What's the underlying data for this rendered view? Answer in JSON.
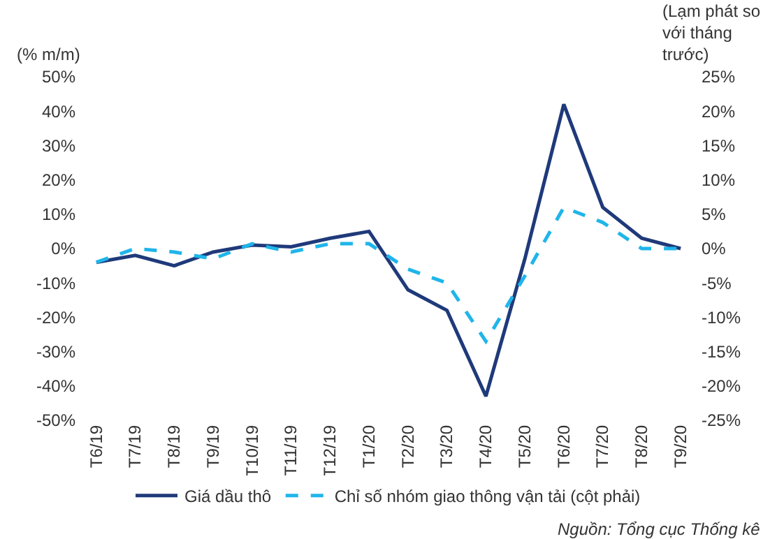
{
  "chart_data": {
    "type": "line",
    "categories": [
      "T6/19",
      "T7/19",
      "T8/19",
      "T9/19",
      "T10/19",
      "T11/19",
      "T12/19",
      "T1/20",
      "T2/20",
      "T3/20",
      "T4/20",
      "T5/20",
      "T6/20",
      "T7/20",
      "T8/20",
      "T9/20"
    ],
    "series": [
      {
        "name": "Giá dầu thô",
        "color": "#1f3a7a",
        "line_style": "solid",
        "values": [
          -4,
          -2,
          -5,
          -1,
          1,
          0.5,
          3,
          5,
          -12,
          -18,
          -43,
          -3,
          42,
          12,
          3,
          0
        ]
      },
      {
        "name": "Chỉ số nhóm giao thông vận tải (cột phải)",
        "color": "#1fb5ea",
        "line_style": "dashed",
        "axis": "y2",
        "values": [
          -2,
          0,
          -0.5,
          -1.5,
          0.7,
          -0.5,
          0.7,
          0.7,
          -3,
          -5,
          -13.5,
          -4,
          6,
          3.8,
          0,
          0
        ]
      }
    ],
    "ylabel": "(% m/m)",
    "y2label": "(Lạm phát so với tháng trước)",
    "ylim": [
      -50,
      50
    ],
    "yticks": [
      {
        "value": -50,
        "label": "-50%"
      },
      {
        "value": -40,
        "label": "-40%"
      },
      {
        "value": -30,
        "label": "-30%"
      },
      {
        "value": -20,
        "label": "-20%"
      },
      {
        "value": -10,
        "label": "-10%"
      },
      {
        "value": 0,
        "label": "0%"
      },
      {
        "value": 10,
        "label": "10%"
      },
      {
        "value": 20,
        "label": "20%"
      },
      {
        "value": 30,
        "label": "30%"
      },
      {
        "value": 40,
        "label": "40%"
      },
      {
        "value": 50,
        "label": "50%"
      }
    ],
    "y2lim": [
      -25,
      25
    ],
    "y2ticks": [
      {
        "value": -25,
        "label": "-25%"
      },
      {
        "value": -20,
        "label": "-20%"
      },
      {
        "value": -15,
        "label": "-15%"
      },
      {
        "value": -10,
        "label": "-10%"
      },
      {
        "value": -5,
        "label": "-5%"
      },
      {
        "value": 0,
        "label": "0%"
      },
      {
        "value": 5,
        "label": "5%"
      },
      {
        "value": 10,
        "label": "10%"
      },
      {
        "value": 15,
        "label": "15%"
      },
      {
        "value": 20,
        "label": "20%"
      },
      {
        "value": 25,
        "label": "25%"
      }
    ],
    "grid": false,
    "legend": "bottom",
    "marker": "none",
    "annotations": [
      "Nguồn: Tổng cục Thống kê"
    ]
  }
}
